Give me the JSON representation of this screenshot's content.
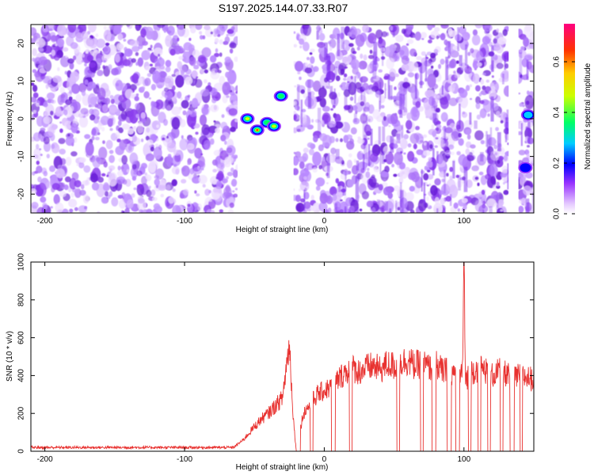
{
  "title": "S197.2025.144.07.33.R07",
  "colors": {
    "trace": "#e8312f",
    "axis": "#000000",
    "cloud": "#7a2cf0"
  },
  "chart_data": [
    {
      "type": "heatmap",
      "xlabel": "Height of straight line (km)",
      "ylabel": "Frequency (Hz)",
      "xlim": [
        -210,
        150
      ],
      "ylim": [
        -25,
        25
      ],
      "xticks": [
        -200,
        -100,
        0,
        100
      ],
      "yticks": [
        -20,
        -10,
        0,
        10,
        20
      ],
      "colorbar": {
        "label": "Normalized spectral amplitude",
        "range": [
          0,
          0.75
        ],
        "ticks": [
          0.0,
          0.2,
          0.4,
          0.6
        ],
        "tick_labels": [
          "0.0",
          "0.2",
          "0.4",
          "0.6"
        ]
      },
      "blank_regions_km": [
        [
          -62,
          -22
        ],
        [
          132,
          139
        ]
      ],
      "features": [
        {
          "x": -55,
          "y": 0,
          "amp": 0.55
        },
        {
          "x": -48,
          "y": -3,
          "amp": 0.7
        },
        {
          "x": -41,
          "y": -1,
          "amp": 0.5
        },
        {
          "x": -36,
          "y": -2,
          "amp": 0.6
        },
        {
          "x": -31,
          "y": 6,
          "amp": 0.45
        },
        {
          "x": 146,
          "y": 1,
          "amp": 0.4
        },
        {
          "x": 144,
          "y": -13,
          "amp": 0.3
        }
      ]
    },
    {
      "type": "line",
      "xlabel": "Height of straight line (km)",
      "ylabel": "SNR (10 * v/v)",
      "xlim": [
        -210,
        150
      ],
      "ylim": [
        0,
        1000
      ],
      "xticks": [
        -200,
        -100,
        0,
        100
      ],
      "yticks": [
        0,
        200,
        400,
        600,
        800,
        1000
      ],
      "series": [
        {
          "x": [
            -210,
            -150,
            -100,
            -65,
            -58,
            -50,
            -45,
            -40,
            -35,
            -30,
            -25,
            -22,
            -20,
            -15,
            -10,
            -5,
            0,
            5,
            10,
            15,
            20,
            25,
            30,
            35,
            40,
            45,
            50,
            55,
            60,
            65,
            70,
            75,
            80,
            85,
            90,
            95,
            99,
            100,
            101,
            105,
            110,
            115,
            120,
            125,
            130,
            135,
            140,
            145,
            150
          ],
          "y": [
            20,
            20,
            20,
            20,
            60,
            130,
            170,
            200,
            240,
            280,
            570,
            160,
            0,
            200,
            250,
            300,
            320,
            340,
            380,
            420,
            440,
            420,
            440,
            450,
            430,
            460,
            450,
            470,
            480,
            450,
            470,
            440,
            460,
            420,
            430,
            400,
            420,
            1000,
            380,
            420,
            440,
            430,
            400,
            420,
            410,
            380,
            400,
            390,
            380
          ]
        }
      ],
      "dropout_ranges_km": [
        [
          -20,
          -17
        ],
        [
          -10,
          -8
        ],
        [
          5,
          8
        ],
        [
          18,
          20
        ],
        [
          52,
          54
        ],
        [
          69,
          71
        ],
        [
          77,
          80
        ],
        [
          88,
          91
        ],
        [
          94,
          97
        ],
        [
          103,
          105
        ],
        [
          110,
          112
        ],
        [
          117,
          119
        ],
        [
          126,
          128
        ],
        [
          133,
          136
        ],
        [
          140,
          142
        ]
      ]
    }
  ]
}
